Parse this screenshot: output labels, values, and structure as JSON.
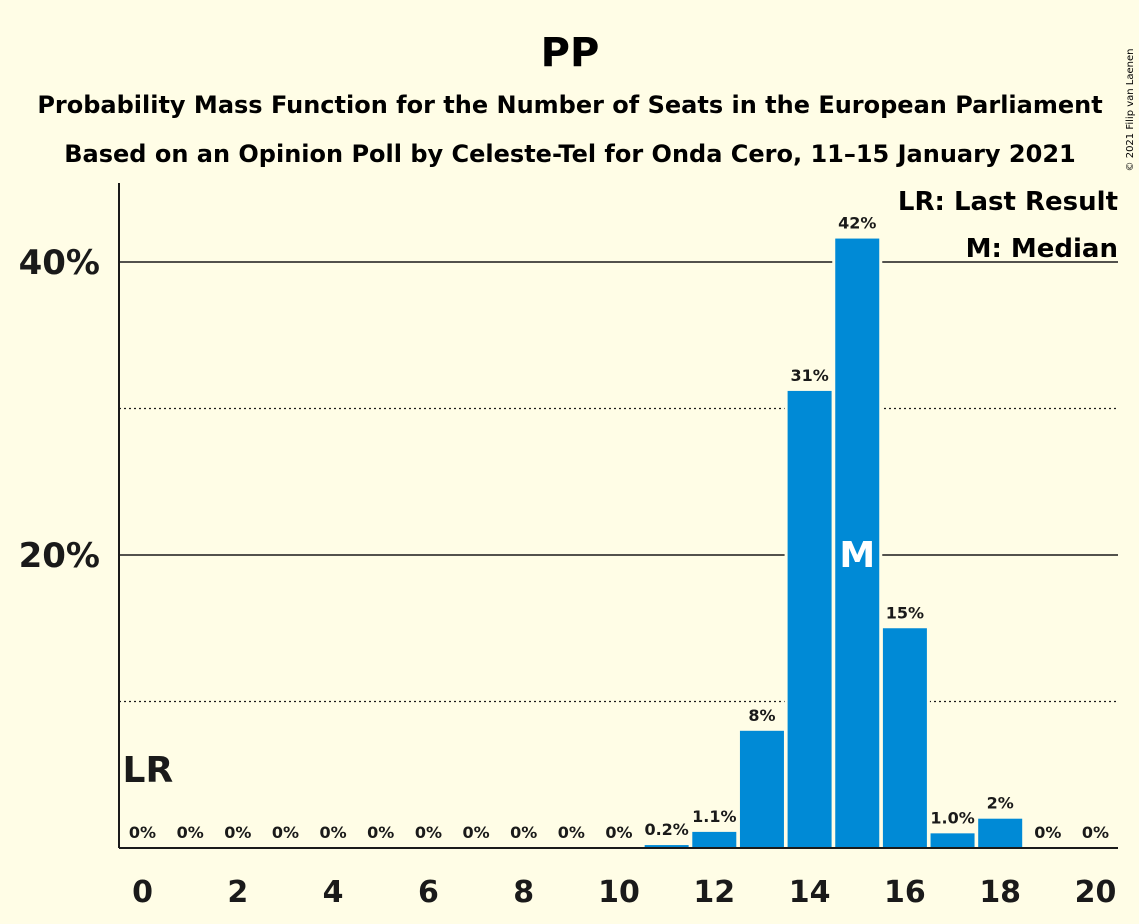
{
  "chart_data": {
    "type": "bar",
    "title": "PP",
    "subtitle_1": "Probability Mass Function for the Number of Seats in the European Parliament",
    "subtitle_2": "Based on an Opinion Poll by Celeste-Tel for Onda Cero, 11–15 January 2021",
    "copyright": "© 2021 Filip van Laenen",
    "x": [
      0,
      1,
      2,
      3,
      4,
      5,
      6,
      7,
      8,
      9,
      10,
      11,
      12,
      13,
      14,
      15,
      16,
      17,
      18,
      19,
      20
    ],
    "values": [
      0,
      0,
      0,
      0,
      0,
      0,
      0,
      0,
      0,
      0,
      0,
      0.2,
      1.1,
      8,
      31.2,
      41.6,
      15.0,
      1.0,
      2.0,
      0,
      0
    ],
    "data_labels": [
      "0%",
      "0%",
      "0%",
      "0%",
      "0%",
      "0%",
      "0%",
      "0%",
      "0%",
      "0%",
      "0%",
      "0.2%",
      "1.1%",
      "8%",
      "31%",
      "42%",
      "15%",
      "1.0%",
      "2%",
      "0%",
      "0%"
    ],
    "x_tick_labels": [
      "0",
      "2",
      "4",
      "6",
      "8",
      "10",
      "12",
      "14",
      "16",
      "18",
      "20"
    ],
    "x_tick_values": [
      0,
      2,
      4,
      6,
      8,
      10,
      12,
      14,
      16,
      18,
      20
    ],
    "y_tick_labels": [
      "20%",
      "40%"
    ],
    "y_tick_values": [
      20,
      40
    ],
    "y_dotted_gridlines": [
      10,
      30
    ],
    "ylim": [
      0,
      45.5
    ],
    "xlim": [
      -0.5,
      20.5
    ],
    "last_result": {
      "seat": 0,
      "marker": "LR"
    },
    "median": {
      "seat": 15,
      "marker": "M"
    },
    "legend": [
      "LR: Last Result",
      "M: Median"
    ],
    "bar_color": "#008ad6",
    "background_color": "#fffde6",
    "text_color": "#1a1a1a"
  }
}
